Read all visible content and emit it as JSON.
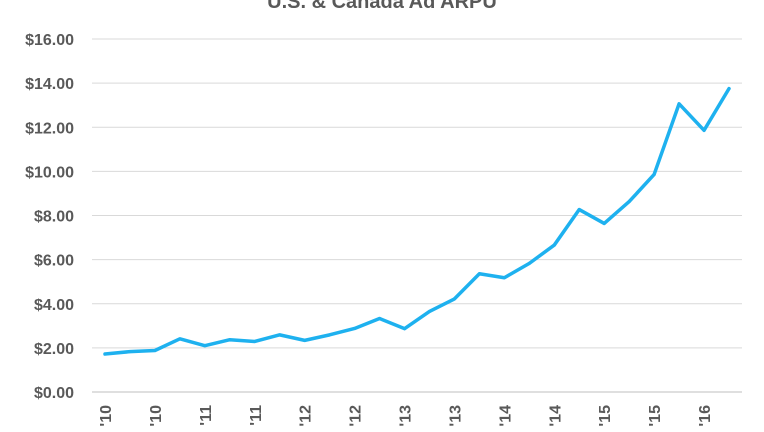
{
  "chart_data": {
    "type": "line",
    "title": "U.S. & Canada Ad ARPU",
    "xlabel": "",
    "ylabel": "",
    "ylim": [
      0,
      16
    ],
    "y_ticks": [
      "$0.00",
      "$2.00",
      "$4.00",
      "$6.00",
      "$8.00",
      "$10.00",
      "$12.00",
      "$14.00",
      "$16.00"
    ],
    "x_tick_labels": [
      "'10",
      "'10",
      "'11",
      "'11",
      "'12",
      "'12",
      "'13",
      "'13",
      "'14",
      "'14",
      "'15",
      "'15",
      "'16"
    ],
    "grid": "horizontal",
    "legend": "none",
    "series": [
      {
        "values": [
          1.72,
          1.83,
          1.88,
          2.41,
          2.1,
          2.37,
          2.29,
          2.59,
          2.34,
          2.59,
          2.88,
          3.33,
          2.87,
          3.65,
          4.22,
          5.36,
          5.18,
          5.83,
          6.66,
          8.27,
          7.64,
          8.63,
          9.86,
          13.06,
          11.86,
          13.75
        ],
        "color": "#1eb1ef"
      }
    ]
  }
}
